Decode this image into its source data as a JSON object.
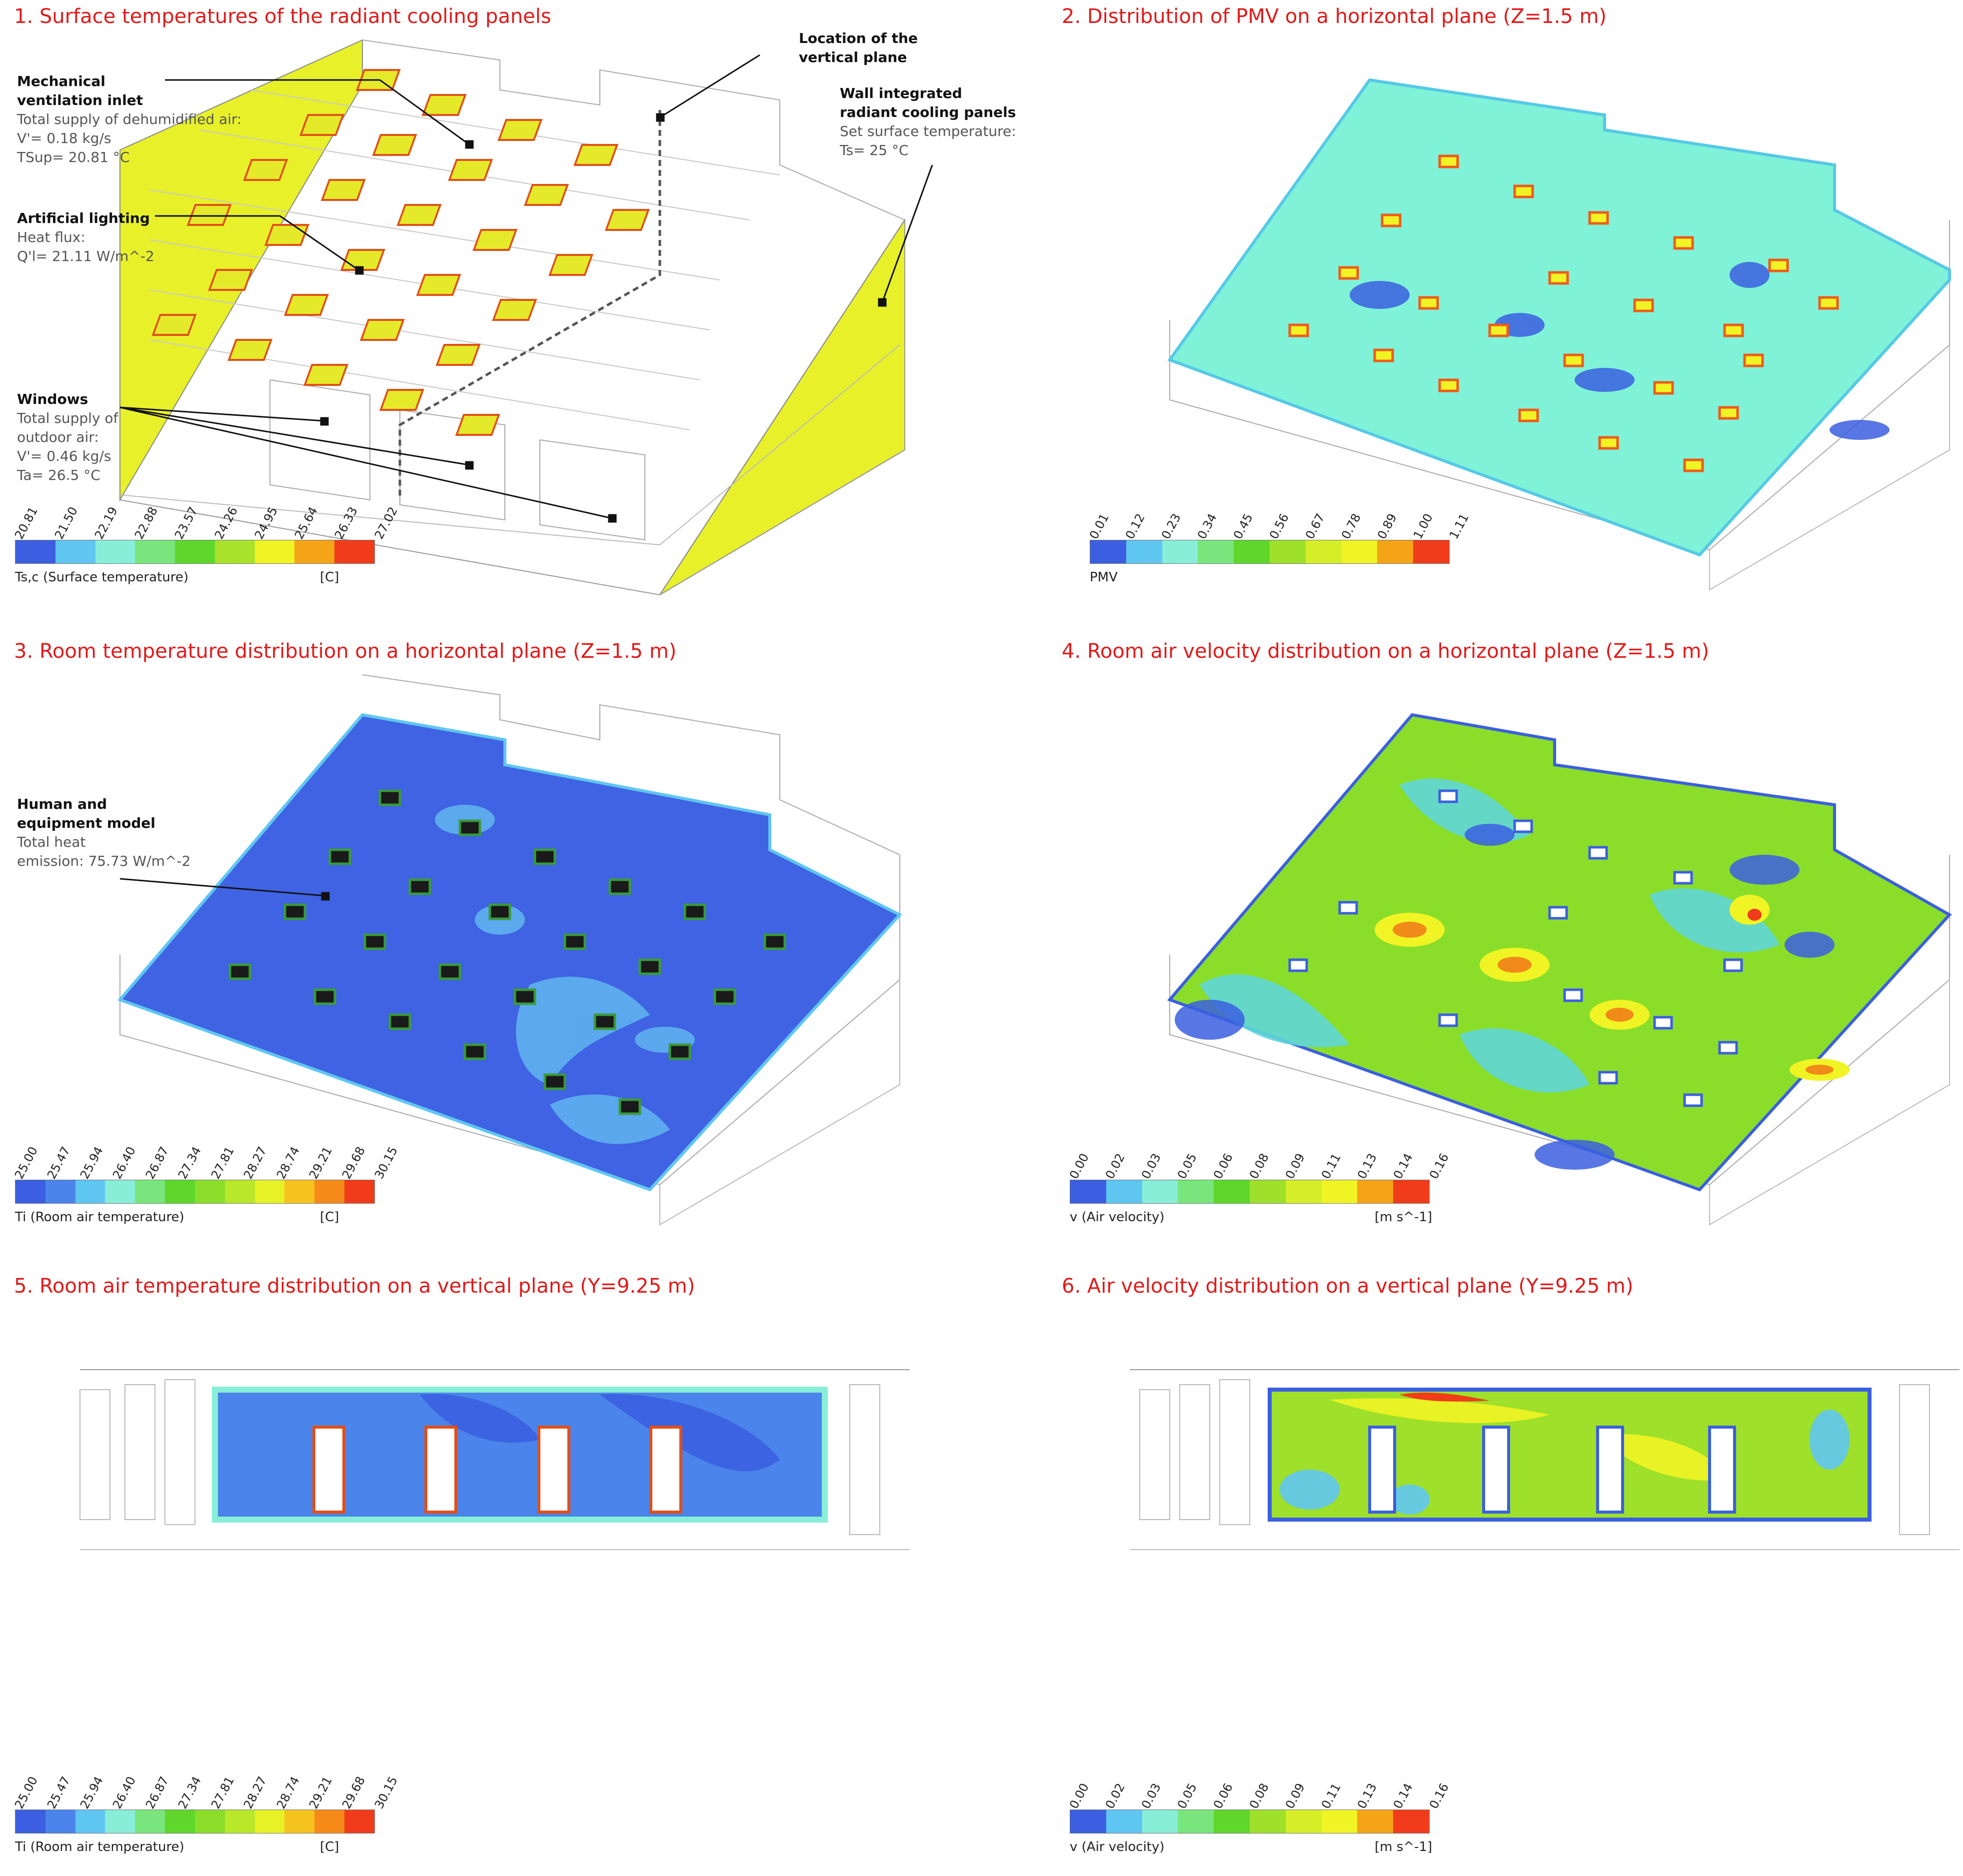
{
  "panels": [
    {
      "title": "1. Surface temperatures of the radiant cooling panels"
    },
    {
      "title": "2. Distribution of PMV on a horizontal plane (Z=1.5 m)"
    },
    {
      "title": "3. Room temperature distribution on a horizontal plane (Z=1.5 m)"
    },
    {
      "title": "4. Room air velocity distribution on a horizontal plane (Z=1.5 m)"
    },
    {
      "title": "5. Room air temperature distribution on a vertical plane (Y=9.25 m)"
    },
    {
      "title": "6. Air velocity distribution on a vertical plane (Y=9.25 m)"
    }
  ],
  "annotations": {
    "vent": {
      "heading1": "Mechanical",
      "heading2": "ventilation inlet",
      "line1": "Total supply of dehumidified air:",
      "line2": "V'= 0.18 kg/s",
      "line3": "TSup= 20.81 °C"
    },
    "light": {
      "heading": "Artificial lighting",
      "line1": "Heat flux:",
      "line2": "Q'l= 21.11 W/m^-2"
    },
    "windows": {
      "heading": "Windows",
      "line1": "Total supply of",
      "line2": "outdoor air:",
      "line3": "V'= 0.46 kg/s",
      "line4": "Ta= 26.5 °C"
    },
    "vplane": {
      "heading1": "Location of the",
      "heading2": "vertical plane"
    },
    "wall": {
      "heading1": "Wall integrated",
      "heading2": "radiant cooling panels",
      "line1": "Set surface temperature:",
      "line2": "Ts= 25 °C"
    },
    "human": {
      "heading1": "Human and",
      "heading2": "equipment model",
      "line1": "Total heat",
      "line2": "emission: 75.73 W/m^-2"
    }
  },
  "legends": {
    "surface": {
      "ticks": [
        "20.81",
        "21.50",
        "22.19",
        "22.88",
        "23.57",
        "24.26",
        "24.95",
        "25.64",
        "26.33",
        "27.02"
      ],
      "label": "Ts,c (Surface temperature)",
      "unit": "[C]",
      "colors": [
        "#3b5fe0",
        "#5fc6f2",
        "#88eed8",
        "#79e67d",
        "#5fd62c",
        "#a9e22a",
        "#f0f424",
        "#f5a418",
        "#f03c1a"
      ]
    },
    "pmv": {
      "ticks": [
        "0.01",
        "0.12",
        "0.23",
        "0.34",
        "0.45",
        "0.56",
        "0.67",
        "0.78",
        "0.89",
        "1.00",
        "1.11"
      ],
      "label": "PMV",
      "unit": "",
      "colors": [
        "#3b5fe0",
        "#5fc6f2",
        "#88eed8",
        "#79e67d",
        "#5fd62c",
        "#9ee02a",
        "#d4ee28",
        "#f0f424",
        "#f5a418",
        "#f03c1a"
      ]
    },
    "temp": {
      "ticks": [
        "25.00",
        "25.47",
        "25.94",
        "26.40",
        "26.87",
        "27.34",
        "27.81",
        "28.27",
        "28.74",
        "29.21",
        "29.68",
        "30.15"
      ],
      "label": "Ti (Room air temperature)",
      "unit": "[C]",
      "colors": [
        "#3b5fe0",
        "#4b84ea",
        "#5fc6f2",
        "#88eed8",
        "#79e67d",
        "#5fd62c",
        "#8ade2a",
        "#b8e829",
        "#e6f226",
        "#f5c41e",
        "#f58a18",
        "#f03c1a"
      ]
    },
    "vel": {
      "ticks": [
        "0.00",
        "0.02",
        "0.03",
        "0.05",
        "0.06",
        "0.08",
        "0.09",
        "0.11",
        "0.13",
        "0.14",
        "0.16"
      ],
      "label": "v (Air velocity)",
      "unit": "[m s^-1]",
      "colors": [
        "#3b5fe0",
        "#5fc6f2",
        "#88eed8",
        "#79e67d",
        "#5fd62c",
        "#9ee02a",
        "#d4ee28",
        "#f0f424",
        "#f5a418",
        "#f03c1a"
      ]
    }
  },
  "legend_use": {
    "p1": {
      "ticks": [
        "20.81",
        "21.50",
        "22.19",
        "22.88",
        "23.57",
        "24.26",
        "24.95",
        "25.64",
        "26.33",
        "27.02"
      ],
      "label": "Ts,c (Surface temperature)",
      "unit": "[C]"
    },
    "p2": {
      "ticks": [
        "0.01",
        "0.12",
        "0.23",
        "0.34",
        "0.45",
        "0.56",
        "0.67",
        "0.78",
        "0.89",
        "1.00",
        "1.11"
      ],
      "label": "PMV",
      "unit": ""
    },
    "p3": {
      "ticks": [
        "25.00",
        "25.47",
        "25.94",
        "26.40",
        "26.87",
        "27.34",
        "27.81",
        "28.27",
        "28.74",
        "29.21",
        "29.68",
        "30.15"
      ],
      "label": "Ti (Room air temperature)",
      "unit": "[C]"
    },
    "p4": {
      "ticks": [
        "0.00",
        "0.02",
        "0.03",
        "0.05",
        "0.06",
        "0.08",
        "0.09",
        "0.11",
        "0.13",
        "0.14",
        "0.16"
      ],
      "label": "v (Air velocity)",
      "unit": "[m s^-1]"
    },
    "p5": {
      "ticks": [
        "25.00",
        "25.47",
        "25.94",
        "26.40",
        "26.87",
        "27.34",
        "27.81",
        "28.27",
        "28.74",
        "29.21",
        "29.68",
        "30.15"
      ],
      "label": "Ti (Room air temperature)",
      "unit": "[C]"
    },
    "p6": {
      "ticks": [
        "0.00",
        "0.02",
        "0.03",
        "0.05",
        "0.06",
        "0.08",
        "0.09",
        "0.11",
        "0.13",
        "0.14",
        "0.16"
      ],
      "label": "v (Air velocity)",
      "unit": "[m s^-1]"
    }
  }
}
